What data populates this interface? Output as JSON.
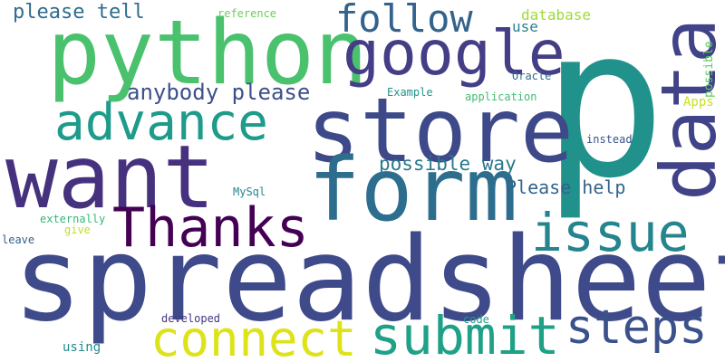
{
  "word_cloud": {
    "words": [
      {
        "text": "spreadsheet",
        "color": "#3f4a8a"
      },
      {
        "text": "p",
        "color": "#21918c"
      },
      {
        "text": "python",
        "color": "#4ac16d"
      },
      {
        "text": "store",
        "color": "#3e4989"
      },
      {
        "text": "want",
        "color": "#46317e"
      },
      {
        "text": "form",
        "color": "#2d6e8e"
      },
      {
        "text": "data",
        "color": "#404387"
      },
      {
        "text": "google",
        "color": "#433e85"
      },
      {
        "text": "submit",
        "color": "#1fa187"
      },
      {
        "text": "Thanks",
        "color": "#440154"
      },
      {
        "text": "advance",
        "color": "#1e9b8a"
      },
      {
        "text": "connect",
        "color": "#dde318"
      },
      {
        "text": "issue",
        "color": "#25858e"
      },
      {
        "text": "steps",
        "color": "#3b518b"
      },
      {
        "text": "follow",
        "color": "#33638d"
      },
      {
        "text": "anybody please",
        "color": "#3c508b"
      },
      {
        "text": "please tell",
        "color": "#2f6c8e"
      },
      {
        "text": "possible way",
        "color": "#2a788e"
      },
      {
        "text": "Please help",
        "color": "#33638d"
      },
      {
        "text": "database",
        "color": "#a0da39"
      },
      {
        "text": "use",
        "color": "#26828e"
      },
      {
        "text": "reference",
        "color": "#6ccd5a"
      },
      {
        "text": "possible",
        "color": "#5ec962"
      },
      {
        "text": "Apps",
        "color": "#c8e020"
      },
      {
        "text": "Oracle",
        "color": "#306a8e"
      },
      {
        "text": "Example",
        "color": "#1f968b"
      },
      {
        "text": "application",
        "color": "#3fbc73"
      },
      {
        "text": "instead",
        "color": "#3b528b"
      },
      {
        "text": "MySql",
        "color": "#24878e"
      },
      {
        "text": "externally",
        "color": "#35b779"
      },
      {
        "text": "give",
        "color": "#c0df25"
      },
      {
        "text": "leave",
        "color": "#355f8d"
      },
      {
        "text": "developed",
        "color": "#453781"
      },
      {
        "text": "code",
        "color": "#1f9e89"
      },
      {
        "text": "using",
        "color": "#23898e"
      }
    ]
  }
}
